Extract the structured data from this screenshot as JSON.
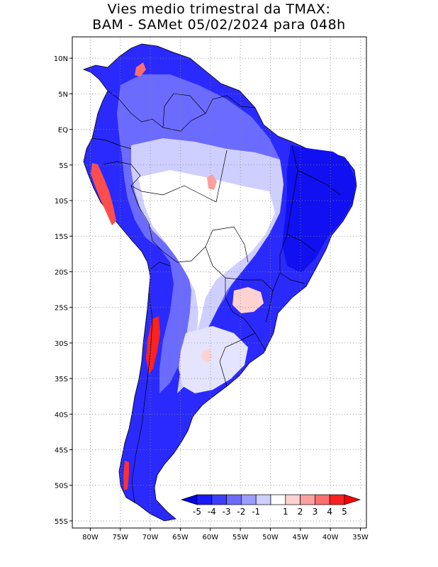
{
  "title_line1": "Vies medio trimestral da TMAX:",
  "title_line2": "BAM - SAMet 05/02/2024  para 048h",
  "map": {
    "lon_range": [
      -83,
      -34
    ],
    "lat_range": [
      -56,
      13
    ],
    "x_ticks": [
      "80W",
      "75W",
      "70W",
      "65W",
      "60W",
      "55W",
      "50W",
      "45W",
      "40W",
      "35W"
    ],
    "x_tick_values": [
      -80,
      -75,
      -70,
      -65,
      -60,
      -55,
      -50,
      -45,
      -40,
      -35
    ],
    "y_ticks": [
      "10N",
      "5N",
      "EQ",
      "5S",
      "10S",
      "15S",
      "20S",
      "25S",
      "30S",
      "35S",
      "40S",
      "45S",
      "50S",
      "55S"
    ],
    "y_tick_values": [
      10,
      5,
      0,
      -5,
      -10,
      -15,
      -20,
      -25,
      -30,
      -35,
      -40,
      -45,
      -50,
      -55
    ],
    "grid": "dotted"
  },
  "colorbar": {
    "labels": [
      "-5",
      "-4",
      "-3",
      "-2",
      "-1",
      "1",
      "2",
      "3",
      "4",
      "5"
    ],
    "colors": [
      "#1a1aff",
      "#3d3dff",
      "#6b6bff",
      "#9c9cff",
      "#cfcfff",
      "#ffffff",
      "#ffd2d2",
      "#ffa0a0",
      "#ff6e6e",
      "#ff2020"
    ],
    "end_low": "#0000e0",
    "end_high": "#ff0000"
  }
}
